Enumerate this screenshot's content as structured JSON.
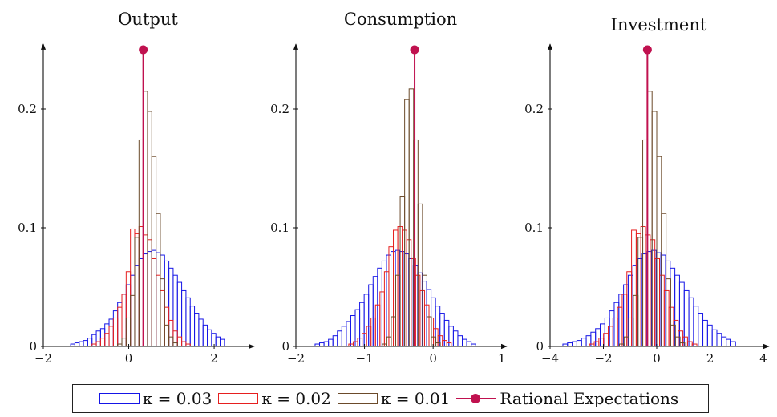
{
  "colors": {
    "kappa_003": "#1515e6",
    "kappa_002": "#e61f1f",
    "kappa_001": "#6b4a2a",
    "rational": "#c0114f"
  },
  "legend": [
    {
      "label": "κ = 0.03",
      "color": "#1515e6",
      "kind": "bar"
    },
    {
      "label": "κ = 0.02",
      "color": "#e61f1f",
      "kind": "bar"
    },
    {
      "label": "κ = 0.01",
      "color": "#6b4a2a",
      "kind": "bar"
    },
    {
      "label": "Rational Expectations",
      "color": "#c0114f",
      "kind": "line-marker"
    }
  ],
  "chart_data": [
    {
      "type": "histogram",
      "title": "Output",
      "xlim": [
        -2,
        2.9
      ],
      "ylim": [
        0,
        0.25
      ],
      "xticks": [
        -2,
        0,
        2
      ],
      "yticks": [
        0,
        0.1,
        0.2
      ],
      "ytick_labels": [
        "0",
        "0.1",
        "0.2"
      ],
      "rational_expectations": {
        "x": 0.34,
        "y": 0.25
      },
      "series": [
        {
          "name": "κ = 0.03",
          "bin_start": -1.36,
          "bin_width": 0.1,
          "values": [
            0.002,
            0.003,
            0.004,
            0.005,
            0.007,
            0.01,
            0.013,
            0.015,
            0.019,
            0.023,
            0.03,
            0.037,
            0.044,
            0.052,
            0.06,
            0.068,
            0.074,
            0.078,
            0.08,
            0.081,
            0.079,
            0.077,
            0.072,
            0.066,
            0.06,
            0.054,
            0.047,
            0.041,
            0.034,
            0.028,
            0.023,
            0.018,
            0.014,
            0.011,
            0.008,
            0.006
          ]
        },
        {
          "name": "κ = 0.02",
          "bin_start": -0.86,
          "bin_width": 0.1,
          "values": [
            0.002,
            0.004,
            0.007,
            0.011,
            0.017,
            0.024,
            0.033,
            0.044,
            0.063,
            0.099,
            0.095,
            0.101,
            0.094,
            0.09,
            0.074,
            0.06,
            0.047,
            0.033,
            0.022,
            0.013,
            0.008,
            0.004,
            0.002
          ]
        },
        {
          "name": "κ = 0.01",
          "bin_start": -0.26,
          "bin_width": 0.1,
          "values": [
            0.002,
            0.007,
            0.024,
            0.043,
            0.092,
            0.174,
            0.215,
            0.198,
            0.16,
            0.112,
            0.057,
            0.018,
            0.008,
            0.003
          ]
        }
      ]
    },
    {
      "type": "histogram",
      "title": "Consumption",
      "xlim": [
        -2,
        1.05
      ],
      "ylim": [
        0,
        0.25
      ],
      "xticks": [
        -2,
        -1,
        0,
        1
      ],
      "yticks": [
        0,
        0.1,
        0.2
      ],
      "ytick_labels": [
        "0",
        "0.1",
        "0.2"
      ],
      "rational_expectations": {
        "x": -0.27,
        "y": 0.25
      },
      "series": [
        {
          "name": "κ = 0.03",
          "bin_start": -1.72,
          "bin_width": 0.065,
          "values": [
            0.002,
            0.003,
            0.004,
            0.006,
            0.009,
            0.013,
            0.017,
            0.021,
            0.026,
            0.031,
            0.037,
            0.044,
            0.052,
            0.059,
            0.066,
            0.072,
            0.077,
            0.08,
            0.081,
            0.08,
            0.078,
            0.074,
            0.068,
            0.062,
            0.055,
            0.048,
            0.041,
            0.034,
            0.028,
            0.022,
            0.017,
            0.013,
            0.009,
            0.006,
            0.004,
            0.002
          ]
        },
        {
          "name": "κ = 0.02",
          "bin_start": -1.23,
          "bin_width": 0.065,
          "values": [
            0.002,
            0.004,
            0.007,
            0.011,
            0.017,
            0.024,
            0.035,
            0.046,
            0.063,
            0.084,
            0.098,
            0.101,
            0.098,
            0.09,
            0.074,
            0.06,
            0.047,
            0.035,
            0.024,
            0.015,
            0.009,
            0.005,
            0.003
          ]
        },
        {
          "name": "κ = 0.01",
          "bin_start": -0.74,
          "bin_width": 0.065,
          "values": [
            0.002,
            0.008,
            0.025,
            0.06,
            0.126,
            0.208,
            0.217,
            0.174,
            0.12,
            0.06,
            0.025,
            0.008,
            0.003
          ]
        }
      ]
    },
    {
      "type": "histogram",
      "title": "Investment",
      "xlim": [
        -4,
        4.15
      ],
      "ylim": [
        0,
        0.25
      ],
      "xticks": [
        -4,
        -2,
        0,
        2,
        4
      ],
      "yticks": [
        0,
        0.1,
        0.2
      ],
      "ytick_labels": [
        "0",
        "0.1",
        "0.2"
      ],
      "rational_expectations": {
        "x": -0.35,
        "y": 0.25
      },
      "series": [
        {
          "name": "κ = 0.03",
          "bin_start": -3.52,
          "bin_width": 0.175,
          "values": [
            0.002,
            0.003,
            0.004,
            0.005,
            0.007,
            0.009,
            0.012,
            0.015,
            0.019,
            0.024,
            0.03,
            0.037,
            0.044,
            0.052,
            0.06,
            0.068,
            0.074,
            0.078,
            0.08,
            0.081,
            0.079,
            0.077,
            0.072,
            0.066,
            0.06,
            0.054,
            0.047,
            0.041,
            0.034,
            0.028,
            0.022,
            0.018,
            0.014,
            0.011,
            0.008,
            0.006,
            0.004
          ]
        },
        {
          "name": "κ = 0.02",
          "bin_start": -2.52,
          "bin_width": 0.175,
          "values": [
            0.002,
            0.004,
            0.007,
            0.011,
            0.017,
            0.024,
            0.033,
            0.044,
            0.063,
            0.098,
            0.095,
            0.101,
            0.094,
            0.09,
            0.074,
            0.06,
            0.047,
            0.033,
            0.022,
            0.013,
            0.008,
            0.004,
            0.002
          ]
        },
        {
          "name": "κ = 0.01",
          "bin_start": -1.4,
          "bin_width": 0.175,
          "values": [
            0.002,
            0.008,
            0.024,
            0.043,
            0.092,
            0.174,
            0.215,
            0.198,
            0.16,
            0.112,
            0.057,
            0.018,
            0.008,
            0.003
          ]
        }
      ]
    }
  ]
}
